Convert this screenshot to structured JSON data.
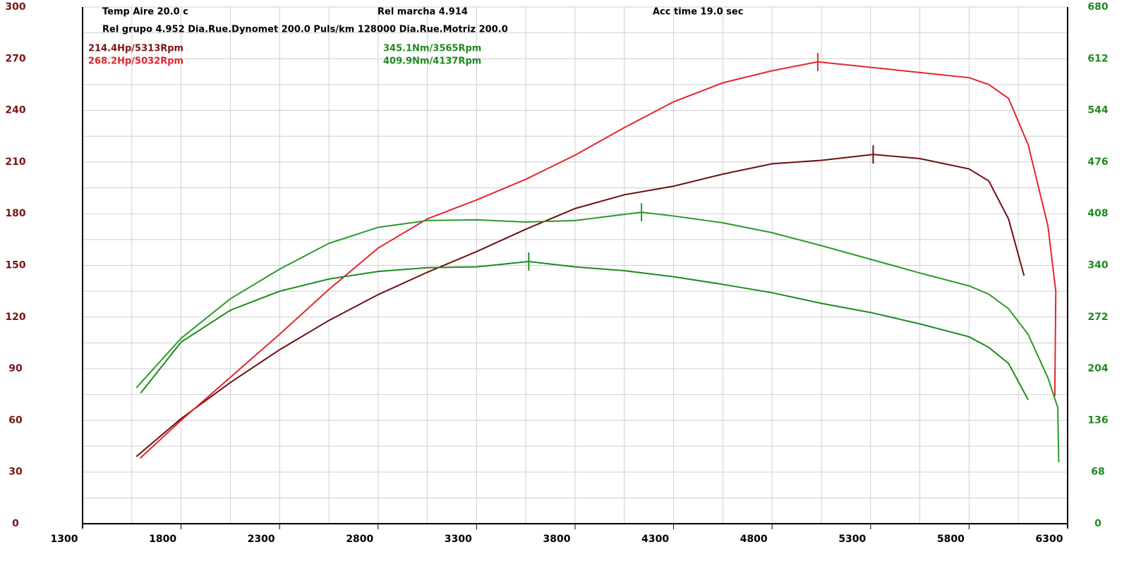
{
  "chart_data": {
    "type": "line",
    "annotations": [
      "Temp Aire  20.0 c",
      "Rel marcha 4.914",
      "Acc time  19.0 sec",
      "Rel grupo 4.952  Dia.Rue.Dynomet 200.0  Puls/km  128000  Dia.Rue.Motriz 200.0",
      "214.4Hp/5313Rpm",
      "268.2Hp/5032Rpm",
      "345.1Nm/3565Rpm",
      "409.9Nm/4137Rpm"
    ],
    "xlim": [
      1300,
      6300
    ],
    "xticks": [
      1300,
      1800,
      2300,
      2800,
      3300,
      3800,
      4300,
      4800,
      5300,
      5800,
      6300
    ],
    "ylim": [
      0,
      300
    ],
    "yticks": [
      0,
      30,
      60,
      90,
      120,
      150,
      180,
      210,
      240,
      270,
      300
    ],
    "y2lim": [
      0,
      680
    ],
    "y2ticks": [
      0,
      68,
      136,
      204,
      272,
      340,
      408,
      476,
      544,
      612,
      680
    ],
    "xgrid": [
      1300,
      1550,
      1800,
      2050,
      2300,
      2550,
      2800,
      3050,
      3300,
      3550,
      3800,
      4050,
      4300,
      4550,
      4800,
      5050,
      5300,
      5550,
      5800,
      6050,
      6300
    ],
    "ygrid": [
      0,
      15,
      30,
      45,
      60,
      75,
      90,
      105,
      120,
      135,
      150,
      165,
      180,
      195,
      210,
      225,
      240,
      255,
      270,
      285,
      300
    ],
    "grid": true,
    "series": [
      {
        "color": "#6e0f12",
        "x": [
          1573,
          1800,
          2050,
          2300,
          2550,
          2800,
          3050,
          3300,
          3550,
          3800,
          4050,
          4300,
          4550,
          4800,
          5050,
          5313,
          5550,
          5800,
          5900,
          6000,
          6079
        ],
        "values": [
          39,
          61,
          82,
          101,
          118,
          133,
          146,
          158,
          171,
          183,
          191,
          196,
          203,
          209,
          211,
          214.4,
          212,
          206,
          199,
          177,
          144
        ]
      },
      {
        "color": "#e3262b",
        "x": [
          1592,
          1800,
          2050,
          2300,
          2550,
          2800,
          3050,
          3300,
          3550,
          3800,
          4050,
          4300,
          4550,
          4800,
          5032,
          5300,
          5550,
          5800,
          5900,
          6000,
          6100,
          6200,
          6240,
          6235
        ],
        "values": [
          38,
          60,
          85,
          110,
          136,
          160,
          177,
          188,
          200,
          214,
          230,
          245,
          256,
          263,
          268.2,
          265,
          262,
          259,
          255,
          247,
          220,
          173,
          135,
          74
        ]
      },
      {
        "color": "#1f8a1f",
        "axis": "y2",
        "x": [
          1595,
          1800,
          2050,
          2300,
          2550,
          2800,
          3050,
          3300,
          3565,
          3800,
          4050,
          4300,
          4550,
          4800,
          5050,
          5300,
          5550,
          5800,
          5900,
          6000,
          6100
        ],
        "values": [
          172,
          239,
          281,
          306,
          322,
          332,
          337,
          338,
          345.1,
          338,
          333,
          325,
          315,
          304,
          290,
          278,
          263,
          246,
          232,
          211,
          163
        ]
      },
      {
        "color": "#2a9a2a",
        "axis": "y2",
        "x": [
          1573,
          1800,
          2050,
          2300,
          2550,
          2800,
          3050,
          3300,
          3550,
          3800,
          4137,
          4300,
          4550,
          4800,
          5050,
          5300,
          5550,
          5800,
          5900,
          6000,
          6100,
          6200,
          6250,
          6255
        ],
        "values": [
          179,
          244,
          296,
          335,
          369,
          390,
          399,
          400,
          397,
          399,
          409.9,
          405,
          396,
          383,
          366,
          348,
          330,
          313,
          302,
          283,
          249,
          192,
          153,
          81
        ]
      }
    ]
  }
}
